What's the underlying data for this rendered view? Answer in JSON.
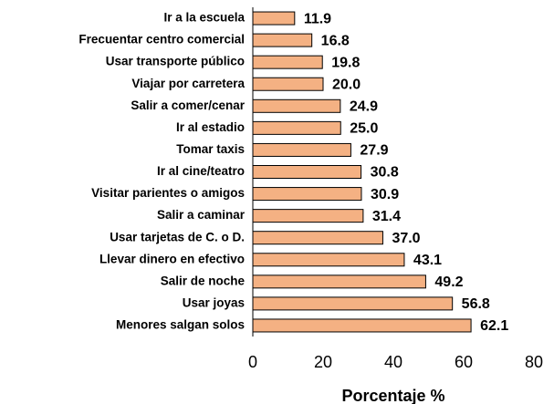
{
  "chart_data": {
    "type": "barh",
    "categories": [
      "Ir a la escuela",
      "Frecuentar centro comercial",
      "Usar transporte público",
      "Viajar por carretera",
      "Salir a comer/cenar",
      "Ir al estadio",
      "Tomar taxis",
      "Ir al cine/teatro",
      "Visitar parientes o amigos",
      "Salir a caminar",
      "Usar tarjetas de C. o D.",
      "Llevar dinero en efectivo",
      "Salir de noche",
      "Usar joyas",
      "Menores salgan solos"
    ],
    "values": [
      11.9,
      16.8,
      19.8,
      20.0,
      24.9,
      25.0,
      27.9,
      30.8,
      30.9,
      31.4,
      37.0,
      43.1,
      49.2,
      56.8,
      62.1
    ],
    "value_labels": [
      "11.9",
      "16.8",
      "19.8",
      "20.0",
      "24.9",
      "25.0",
      "27.9",
      "30.8",
      "30.9",
      "31.4",
      "37.0",
      "43.1",
      "49.2",
      "56.8",
      "62.1"
    ],
    "color": "#f4b183",
    "xlim": [
      0,
      80
    ],
    "xticks": [
      0,
      20,
      40,
      60,
      80
    ],
    "xlabel": "Porcentaje %"
  }
}
